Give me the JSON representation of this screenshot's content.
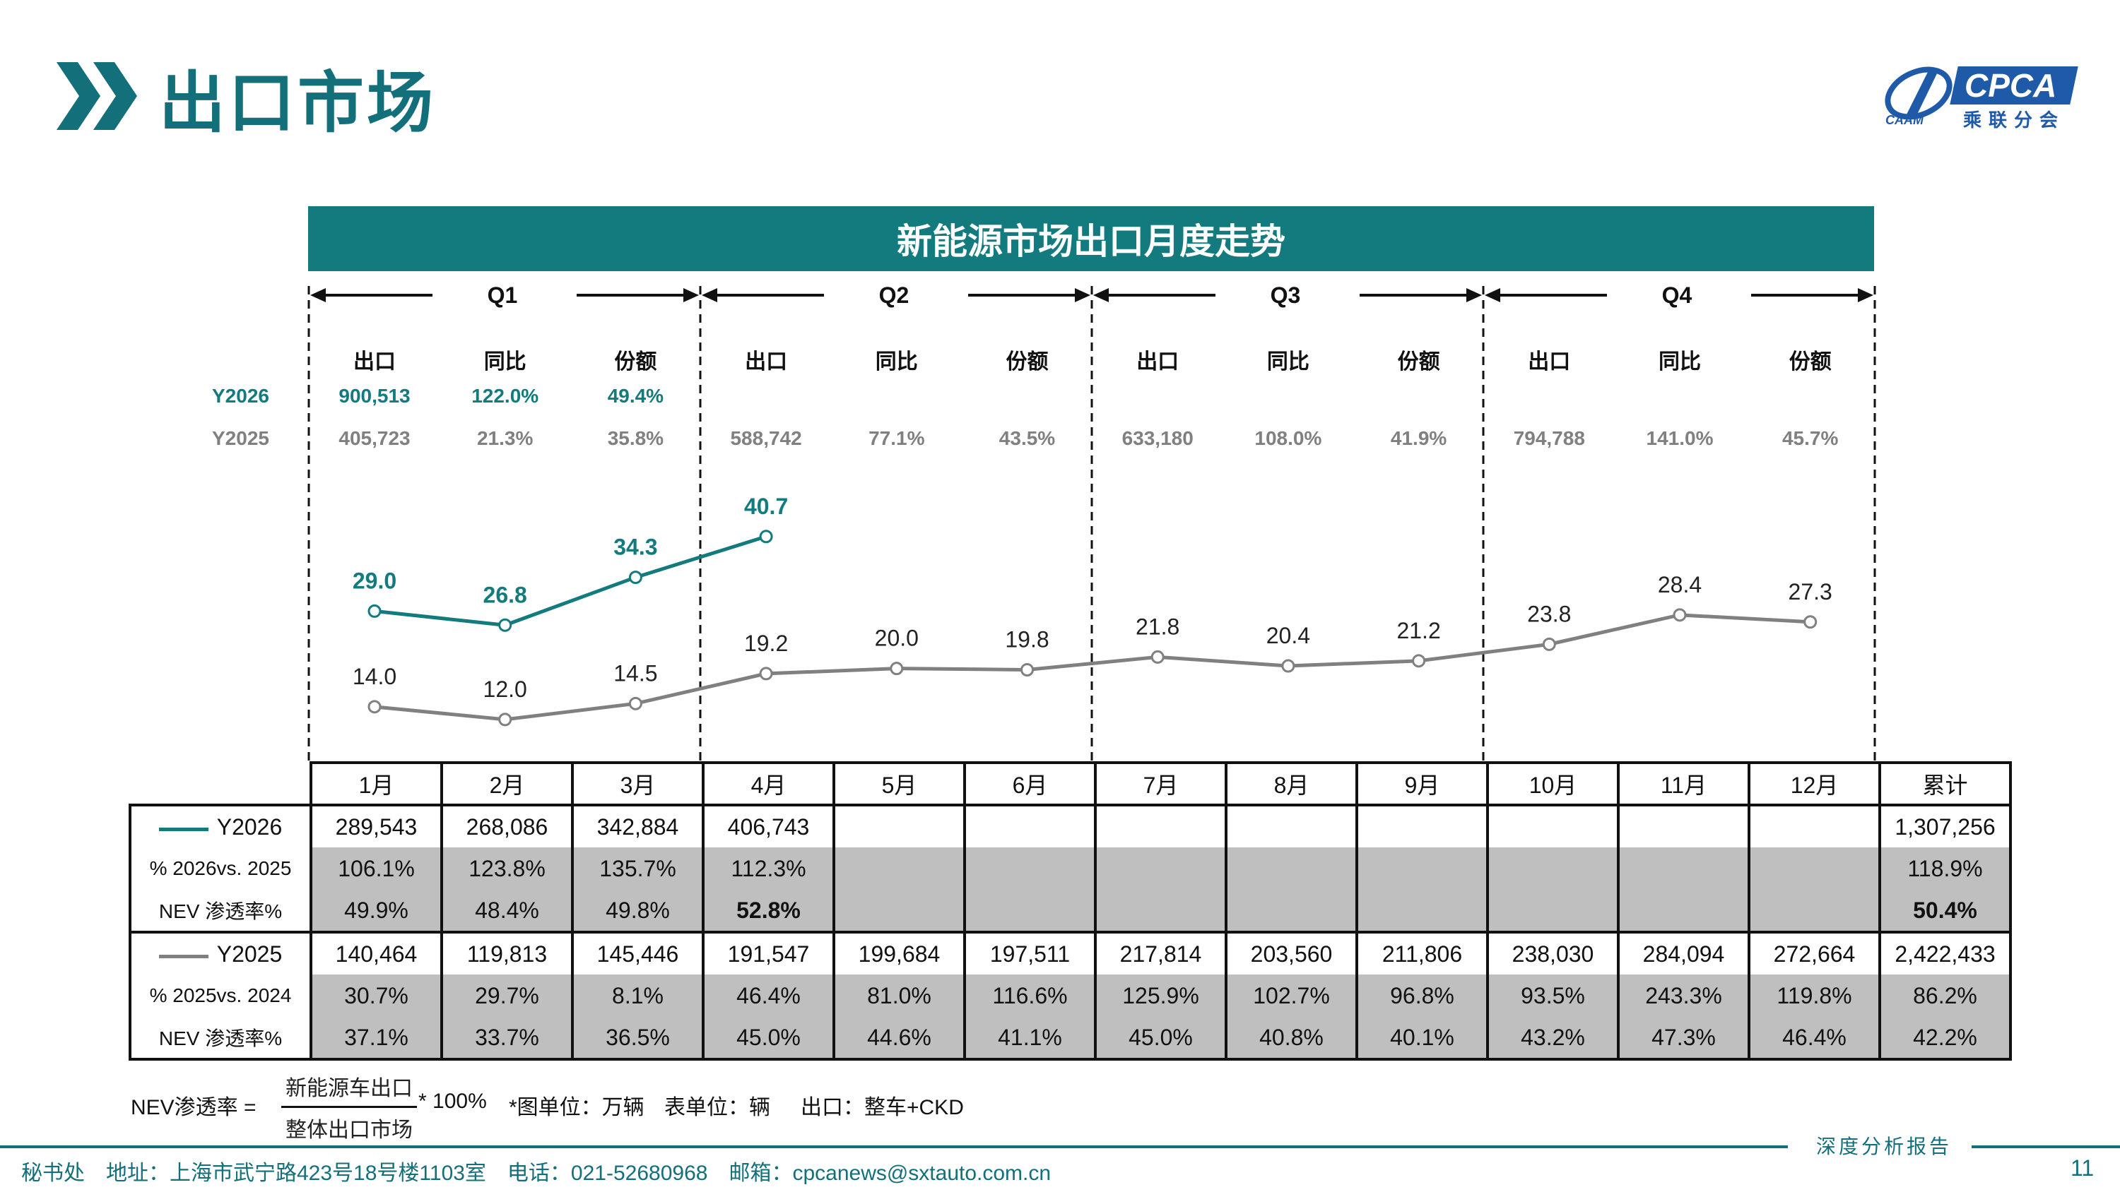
{
  "page": {
    "title": "出口市场",
    "banner": "新能源市场出口月度走势",
    "page_number": "11",
    "brand_tagline": "深度分析报告"
  },
  "logo": {
    "name": "CPCA",
    "sub": "乘联分会"
  },
  "quarters": [
    "Q1",
    "Q2",
    "Q3",
    "Q4"
  ],
  "quarter_col_headers": [
    "出口",
    "同比",
    "份额"
  ],
  "quarter_rows": {
    "y2026": {
      "label": "Y2026",
      "values": [
        [
          "900,513",
          "122.0%",
          "49.4%"
        ],
        null,
        null,
        null
      ]
    },
    "y2025": {
      "label": "Y2025",
      "values": [
        [
          "405,723",
          "21.3%",
          "35.8%"
        ],
        [
          "588,742",
          "77.1%",
          "43.5%"
        ],
        [
          "633,180",
          "108.0%",
          "41.9%"
        ],
        [
          "794,788",
          "141.0%",
          "45.7%"
        ]
      ]
    }
  },
  "chart_data": {
    "type": "line",
    "categories": [
      "1月",
      "2月",
      "3月",
      "4月",
      "5月",
      "6月",
      "7月",
      "8月",
      "9月",
      "10月",
      "11月",
      "12月"
    ],
    "series": [
      {
        "name": "Y2026",
        "color": "#137A7E",
        "values": [
          29.0,
          26.8,
          34.3,
          40.7,
          null,
          null,
          null,
          null,
          null,
          null,
          null,
          null
        ]
      },
      {
        "name": "Y2025",
        "color": "#808080",
        "values": [
          14.0,
          12.0,
          14.5,
          19.2,
          20.0,
          19.8,
          21.8,
          20.4,
          21.2,
          23.8,
          28.4,
          27.3
        ]
      }
    ],
    "ylim": [
      0,
      45
    ],
    "unit_note": "*图单位：万辆"
  },
  "table": {
    "months": [
      "1月",
      "2月",
      "3月",
      "4月",
      "5月",
      "6月",
      "7月",
      "8月",
      "9月",
      "10月",
      "11月",
      "12月"
    ],
    "total_header": "累计",
    "rows": [
      {
        "label": "Y2026",
        "legend": "#137A7E",
        "cells": [
          "289,543",
          "268,086",
          "342,884",
          "406,743",
          "",
          "",
          "",
          "",
          "",
          "",
          "",
          ""
        ],
        "total": "1,307,256",
        "gray": false
      },
      {
        "label": "% 2026vs. 2025",
        "cells": [
          "106.1%",
          "123.8%",
          "135.7%",
          "112.3%",
          "",
          "",
          "",
          "",
          "",
          "",
          "",
          ""
        ],
        "total": "118.9%",
        "gray": true
      },
      {
        "label": "NEV 渗透率%",
        "cells": [
          "49.9%",
          "48.4%",
          "49.8%",
          "52.8%",
          "",
          "",
          "",
          "",
          "",
          "",
          "",
          ""
        ],
        "total": "50.4%",
        "gray": true,
        "bold_cols": [
          3
        ],
        "bold_total": true
      },
      {
        "label": "Y2025",
        "legend": "#808080",
        "cells": [
          "140,464",
          "119,813",
          "145,446",
          "191,547",
          "199,684",
          "197,511",
          "217,814",
          "203,560",
          "211,806",
          "238,030",
          "284,094",
          "272,664"
        ],
        "total": "2,422,433",
        "gray": false
      },
      {
        "label": "% 2025vs. 2024",
        "cells": [
          "30.7%",
          "29.7%",
          "8.1%",
          "46.4%",
          "81.0%",
          "116.6%",
          "125.9%",
          "102.7%",
          "96.8%",
          "93.5%",
          "243.3%",
          "119.8%"
        ],
        "total": "86.2%",
        "gray": true
      },
      {
        "label": "NEV 渗透率%",
        "cells": [
          "37.1%",
          "33.7%",
          "36.5%",
          "45.0%",
          "44.6%",
          "41.1%",
          "45.0%",
          "40.8%",
          "40.1%",
          "43.2%",
          "47.3%",
          "46.4%"
        ],
        "total": "42.2%",
        "gray": true
      }
    ]
  },
  "formula": {
    "lhs": "NEV渗透率 =",
    "numerator": "新能源车出口",
    "denominator": "整体出口市场",
    "tail": "* 100%",
    "unit_chart": "*图单位：万辆",
    "unit_table": "表单位：辆",
    "export_note": "出口：整车+CKD"
  },
  "footer": {
    "text": "秘书处　地址：上海市武宁路423号18号楼1103室　电话：021-52680968　邮箱：cpcanews@sxtauto.com.cn"
  }
}
